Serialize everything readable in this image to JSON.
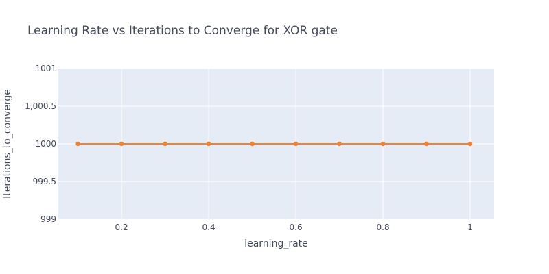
{
  "chart_data": {
    "type": "line",
    "title": "Learning Rate vs Iterations to Converge for XOR gate",
    "xlabel": "learning_rate",
    "ylabel": "Iterations_to_converge",
    "x": [
      0.1,
      0.2,
      0.3,
      0.4,
      0.5,
      0.6,
      0.7,
      0.8,
      0.9,
      1.0
    ],
    "series": [
      {
        "values": [
          1000,
          1000,
          1000,
          1000,
          1000,
          1000,
          1000,
          1000,
          1000,
          1000
        ],
        "color": "#f5812f"
      }
    ],
    "xlim": [
      0.055,
      1.055
    ],
    "ylim": [
      999,
      1001
    ],
    "xticks": [
      0.2,
      0.4,
      0.6,
      0.8,
      1
    ],
    "xtick_labels": [
      "0.2",
      "0.4",
      "0.6",
      "0.8",
      "1"
    ],
    "yticks": [
      999,
      999.5,
      1000,
      1000.5,
      1001
    ],
    "ytick_labels": [
      "999",
      "999.5",
      "1000",
      "1,000.5",
      "1001"
    ],
    "grid": true,
    "legend": "none",
    "plot_background": "#e5ecf6",
    "grid_color": "#ffffff",
    "text_color": "#444a5a"
  }
}
